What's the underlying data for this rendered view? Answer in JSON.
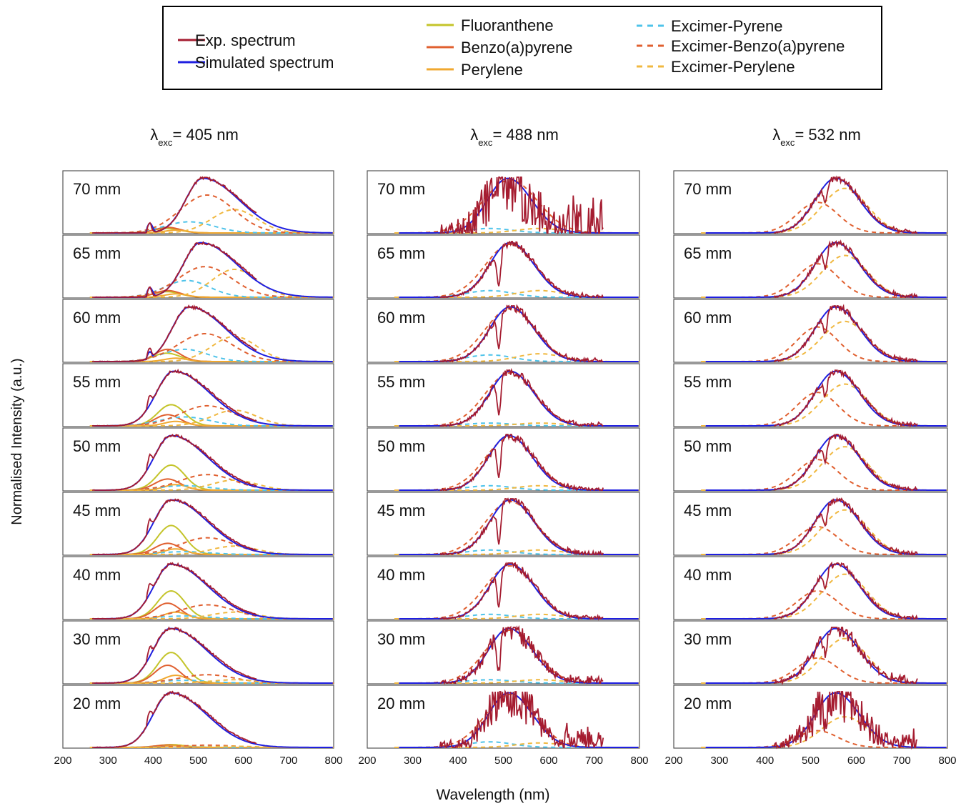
{
  "legend": {
    "entries": [
      {
        "key": "exp",
        "label": "Exp. spectrum",
        "color": "#a51c30",
        "dash": "solid"
      },
      {
        "key": "sim",
        "label": "Simulated spectrum",
        "color": "#1f1fe0",
        "dash": "solid"
      },
      {
        "key": "fluo",
        "label": "Fluoranthene",
        "color": "#c4c42a",
        "dash": "solid"
      },
      {
        "key": "bap",
        "label": "Benzo(a)pyrene",
        "color": "#e06030",
        "dash": "solid"
      },
      {
        "key": "per",
        "label": "Perylene",
        "color": "#f0a830",
        "dash": "solid"
      },
      {
        "key": "expy",
        "label": "Excimer-Pyrene",
        "color": "#4ec3ea",
        "dash": "dashed"
      },
      {
        "key": "exbap",
        "label": "Excimer-Benzo(a)pyrene",
        "color": "#e06030",
        "dash": "dashed"
      },
      {
        "key": "exper",
        "label": "Excimer-Perylene",
        "color": "#f0b840",
        "dash": "dashed"
      }
    ]
  },
  "chart_data": {
    "type": "line",
    "xlabel": "Wavelength (nm)",
    "ylabel": "Normalised Intensity (a.u.)",
    "xlim": [
      200,
      800
    ],
    "xticks": [
      200,
      300,
      400,
      500,
      600,
      700,
      800
    ],
    "columns": [
      {
        "title_main": "λ",
        "title_sub": "exc",
        "title_rest": "=  405 nm",
        "excitation_nm": 405,
        "noise": 0.02,
        "panels": [
          {
            "label": "70 mm",
            "peak": 510,
            "exp_end": 630,
            "components": {
              "fluo": [
                430,
                30,
                0.08
              ],
              "bap": [
                432,
                28,
                0.1
              ],
              "per": [
                450,
                25,
                0.05
              ],
              "expy": [
                480,
                55,
                0.2
              ],
              "exbap": [
                520,
                60,
                0.68
              ],
              "exper": [
                580,
                50,
                0.42
              ]
            }
          },
          {
            "label": "65 mm",
            "peak": 505,
            "exp_end": 630,
            "components": {
              "fluo": [
                430,
                30,
                0.1
              ],
              "bap": [
                432,
                28,
                0.12
              ],
              "per": [
                450,
                25,
                0.06
              ],
              "expy": [
                475,
                50,
                0.3
              ],
              "exbap": [
                515,
                60,
                0.55
              ],
              "exper": [
                580,
                50,
                0.5
              ]
            }
          },
          {
            "label": "60 mm",
            "peak": 480,
            "exp_end": 630,
            "components": {
              "fluo": [
                430,
                30,
                0.15
              ],
              "bap": [
                432,
                28,
                0.22
              ],
              "per": [
                450,
                25,
                0.06
              ],
              "expy": [
                470,
                50,
                0.22
              ],
              "exbap": [
                515,
                60,
                0.5
              ],
              "exper": [
                580,
                50,
                0.45
              ]
            }
          },
          {
            "label": "55 mm",
            "peak": 445,
            "exp_end": 630,
            "components": {
              "fluo": [
                440,
                30,
                0.38
              ],
              "bap": [
                432,
                28,
                0.2
              ],
              "per": [
                450,
                25,
                0.08
              ],
              "expy": [
                470,
                55,
                0.16
              ],
              "exbap": [
                520,
                60,
                0.36
              ],
              "exper": [
                580,
                50,
                0.28
              ]
            }
          },
          {
            "label": "50 mm",
            "peak": 440,
            "exp_end": 630,
            "components": {
              "fluo": [
                440,
                30,
                0.45
              ],
              "bap": [
                432,
                28,
                0.2
              ],
              "per": [
                450,
                25,
                0.1
              ],
              "expy": [
                470,
                55,
                0.08
              ],
              "exbap": [
                520,
                60,
                0.28
              ],
              "exper": [
                580,
                50,
                0.18
              ]
            }
          },
          {
            "label": "45 mm",
            "peak": 440,
            "exp_end": 630,
            "components": {
              "fluo": [
                440,
                30,
                0.52
              ],
              "bap": [
                432,
                28,
                0.2
              ],
              "per": [
                450,
                25,
                0.1
              ],
              "expy": [
                470,
                55,
                0.05
              ],
              "exbap": [
                520,
                60,
                0.3
              ],
              "exper": [
                580,
                50,
                0.15
              ]
            }
          },
          {
            "label": "40 mm",
            "peak": 440,
            "exp_end": 630,
            "components": {
              "fluo": [
                440,
                30,
                0.5
              ],
              "bap": [
                432,
                28,
                0.28
              ],
              "per": [
                450,
                25,
                0.12
              ],
              "expy": [
                470,
                55,
                0.05
              ],
              "exbap": [
                520,
                60,
                0.25
              ],
              "exper": [
                580,
                50,
                0.12
              ]
            }
          },
          {
            "label": "30 mm",
            "peak": 438,
            "exp_end": 630,
            "components": {
              "fluo": [
                440,
                30,
                0.55
              ],
              "bap": [
                432,
                28,
                0.32
              ],
              "per": [
                450,
                25,
                0.14
              ],
              "expy": [
                470,
                55,
                0.05
              ],
              "exbap": [
                520,
                60,
                0.15
              ],
              "exper": [
                580,
                50,
                0.06
              ]
            }
          },
          {
            "label": "20 mm",
            "peak": 438,
            "exp_end": 630,
            "components": {
              "fluo": [
                440,
                30,
                0.05
              ],
              "bap": [
                432,
                28,
                0.04
              ],
              "per": [
                450,
                25,
                0.03
              ],
              "expy": [
                470,
                55,
                0.02
              ],
              "exbap": [
                520,
                60,
                0.04
              ],
              "exper": [
                580,
                50,
                0.02
              ]
            }
          }
        ]
      },
      {
        "title_main": "λ",
        "title_sub": "exc",
        "title_rest": "=  488 nm",
        "excitation_nm": 488,
        "noise": 0.06,
        "panels": [
          {
            "label": "70 mm",
            "peak": 510,
            "exp_end": 720,
            "noise": 0.6,
            "components": {
              "expy": [
                470,
                50,
                0.08
              ],
              "exbap": [
                515,
                60,
                0.95
              ],
              "exper": [
                580,
                50,
                0.08
              ]
            }
          },
          {
            "label": "65 mm",
            "peak": 515,
            "exp_end": 720,
            "components": {
              "expy": [
                470,
                50,
                0.12
              ],
              "exbap": [
                515,
                55,
                0.95
              ],
              "exper": [
                580,
                50,
                0.12
              ]
            }
          },
          {
            "label": "60 mm",
            "peak": 515,
            "exp_end": 720,
            "components": {
              "expy": [
                470,
                50,
                0.12
              ],
              "exbap": [
                515,
                55,
                0.95
              ],
              "exper": [
                580,
                50,
                0.14
              ]
            }
          },
          {
            "label": "55 mm",
            "peak": 515,
            "exp_end": 720,
            "components": {
              "expy": [
                470,
                50,
                0.05
              ],
              "exbap": [
                515,
                55,
                0.95
              ],
              "exper": [
                580,
                50,
                0.05
              ]
            }
          },
          {
            "label": "50 mm",
            "peak": 512,
            "exp_end": 720,
            "components": {
              "expy": [
                470,
                50,
                0.08
              ],
              "exbap": [
                515,
                55,
                0.95
              ],
              "exper": [
                580,
                50,
                0.08
              ]
            }
          },
          {
            "label": "45 mm",
            "peak": 515,
            "exp_end": 720,
            "components": {
              "expy": [
                470,
                50,
                0.08
              ],
              "exbap": [
                515,
                55,
                0.95
              ],
              "exper": [
                580,
                50,
                0.08
              ]
            }
          },
          {
            "label": "40 mm",
            "peak": 515,
            "exp_end": 720,
            "components": {
              "expy": [
                470,
                50,
                0.08
              ],
              "exbap": [
                515,
                55,
                0.95
              ],
              "exper": [
                580,
                50,
                0.08
              ]
            }
          },
          {
            "label": "30 mm",
            "peak": 512,
            "exp_end": 720,
            "noise": 0.15,
            "components": {
              "expy": [
                470,
                50,
                0.06
              ],
              "exbap": [
                515,
                55,
                0.95
              ],
              "exper": [
                580,
                50,
                0.06
              ]
            }
          },
          {
            "label": "20 mm",
            "peak": 512,
            "exp_end": 720,
            "noise": 0.35,
            "components": {
              "expy": [
                470,
                50,
                0.1
              ],
              "exbap": [
                515,
                55,
                0.95
              ],
              "exper": [
                580,
                50,
                0.08
              ]
            }
          }
        ]
      },
      {
        "title_main": "λ",
        "title_sub": "exc",
        "title_rest": "=  532 nm",
        "excitation_nm": 532,
        "noise": 0.05,
        "panels": [
          {
            "label": "70 mm",
            "peak": 555,
            "exp_end": 735,
            "components": {
              "exbap": [
                515,
                45,
                0.55
              ],
              "exper": [
                575,
                50,
                0.8
              ]
            }
          },
          {
            "label": "65 mm",
            "peak": 555,
            "exp_end": 735,
            "components": {
              "exbap": [
                515,
                45,
                0.6
              ],
              "exper": [
                575,
                50,
                0.75
              ]
            }
          },
          {
            "label": "60 mm",
            "peak": 555,
            "exp_end": 735,
            "components": {
              "exbap": [
                515,
                45,
                0.62
              ],
              "exper": [
                575,
                50,
                0.72
              ]
            }
          },
          {
            "label": "55 mm",
            "peak": 555,
            "exp_end": 735,
            "components": {
              "exbap": [
                515,
                45,
                0.6
              ],
              "exper": [
                575,
                50,
                0.75
              ]
            }
          },
          {
            "label": "50 mm",
            "peak": 555,
            "exp_end": 735,
            "components": {
              "exbap": [
                515,
                45,
                0.55
              ],
              "exper": [
                575,
                50,
                0.78
              ]
            }
          },
          {
            "label": "45 mm",
            "peak": 555,
            "exp_end": 735,
            "components": {
              "exbap": [
                515,
                45,
                0.5
              ],
              "exper": [
                575,
                50,
                0.8
              ]
            }
          },
          {
            "label": "40 mm",
            "peak": 555,
            "exp_end": 735,
            "components": {
              "exbap": [
                515,
                45,
                0.5
              ],
              "exper": [
                575,
                50,
                0.8
              ]
            }
          },
          {
            "label": "30 mm",
            "peak": 555,
            "exp_end": 735,
            "noise": 0.12,
            "components": {
              "exbap": [
                515,
                45,
                0.45
              ],
              "exper": [
                575,
                50,
                0.8
              ]
            }
          },
          {
            "label": "20 mm",
            "peak": 555,
            "exp_end": 735,
            "noise": 0.4,
            "components": {
              "exbap": [
                515,
                45,
                0.3
              ],
              "exper": [
                575,
                50,
                0.55
              ]
            }
          }
        ]
      }
    ]
  }
}
